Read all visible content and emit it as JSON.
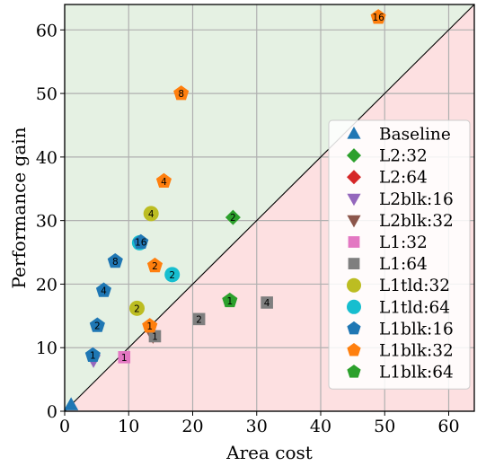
{
  "chart_data": {
    "type": "scatter",
    "xlabel": "Area cost",
    "ylabel": "Performance gain",
    "xlim": [
      0,
      64
    ],
    "ylim": [
      0,
      64
    ],
    "xticks": [
      0,
      10,
      20,
      30,
      40,
      50,
      60
    ],
    "yticks": [
      0,
      10,
      20,
      30,
      40,
      50,
      60
    ],
    "grid": true,
    "legend_position": "right",
    "diagonal": "y = x",
    "regions": {
      "above_diagonal_color": "#e5f1e3",
      "below_diagonal_color": "#fde0e1"
    },
    "series": [
      {
        "name": "Baseline",
        "marker": "triangle-up",
        "color": "#1f77b4",
        "points": [
          {
            "x": 1,
            "y": 1,
            "label": ""
          }
        ]
      },
      {
        "name": "L2:32",
        "marker": "diamond",
        "color": "#2ca02c",
        "points": [
          {
            "x": 26.3,
            "y": 30.5,
            "label": "2"
          }
        ]
      },
      {
        "name": "L2:64",
        "marker": "diamond",
        "color": "#d62728",
        "points": []
      },
      {
        "name": "L2blk:16",
        "marker": "triangle-down",
        "color": "#9467bd",
        "points": [
          {
            "x": 4.5,
            "y": 8,
            "label": ""
          }
        ]
      },
      {
        "name": "L2blk:32",
        "marker": "triangle-down",
        "color": "#8c564b",
        "points": [
          {
            "x": 13.8,
            "y": 11.8,
            "label": ""
          }
        ]
      },
      {
        "name": "L1:32",
        "marker": "square",
        "color": "#e377c2",
        "points": [
          {
            "x": 9.3,
            "y": 8.5,
            "label": "1"
          }
        ]
      },
      {
        "name": "L1:64",
        "marker": "square",
        "color": "#7f7f7f",
        "points": [
          {
            "x": 14.1,
            "y": 11.8,
            "label": "1"
          },
          {
            "x": 21,
            "y": 14.5,
            "label": "2"
          },
          {
            "x": 31.6,
            "y": 17.1,
            "label": "4"
          }
        ]
      },
      {
        "name": "L1tld:32",
        "marker": "circle",
        "color": "#bcbd22",
        "points": [
          {
            "x": 11.3,
            "y": 16.2,
            "label": "2"
          },
          {
            "x": 13.5,
            "y": 31.1,
            "label": "4"
          }
        ]
      },
      {
        "name": "L1tld:64",
        "marker": "circle",
        "color": "#17becf",
        "points": [
          {
            "x": 16.8,
            "y": 21.5,
            "label": "2"
          },
          {
            "x": 11.7,
            "y": 26.5,
            "label": "6"
          }
        ]
      },
      {
        "name": "L1blk:16",
        "marker": "pentagon",
        "color": "#1f77b4",
        "points": [
          {
            "x": 4.4,
            "y": 8.8,
            "label": "1"
          },
          {
            "x": 5.1,
            "y": 13.5,
            "label": "2"
          },
          {
            "x": 6.1,
            "y": 19,
            "label": "4"
          },
          {
            "x": 7.9,
            "y": 23.6,
            "label": "8"
          },
          {
            "x": 11.9,
            "y": 26.6,
            "label": "16"
          }
        ]
      },
      {
        "name": "L1blk:32",
        "marker": "pentagon",
        "color": "#ff7f0e",
        "points": [
          {
            "x": 13.3,
            "y": 13.4,
            "label": "1"
          },
          {
            "x": 14.1,
            "y": 22.9,
            "label": "2"
          },
          {
            "x": 15.5,
            "y": 36.2,
            "label": "4"
          },
          {
            "x": 18.2,
            "y": 50,
            "label": "8"
          },
          {
            "x": 49,
            "y": 62,
            "label": "16"
          }
        ]
      },
      {
        "name": "L1blk:64",
        "marker": "pentagon",
        "color": "#2ca02c",
        "points": [
          {
            "x": 25.8,
            "y": 17.4,
            "label": "1"
          }
        ]
      }
    ]
  }
}
